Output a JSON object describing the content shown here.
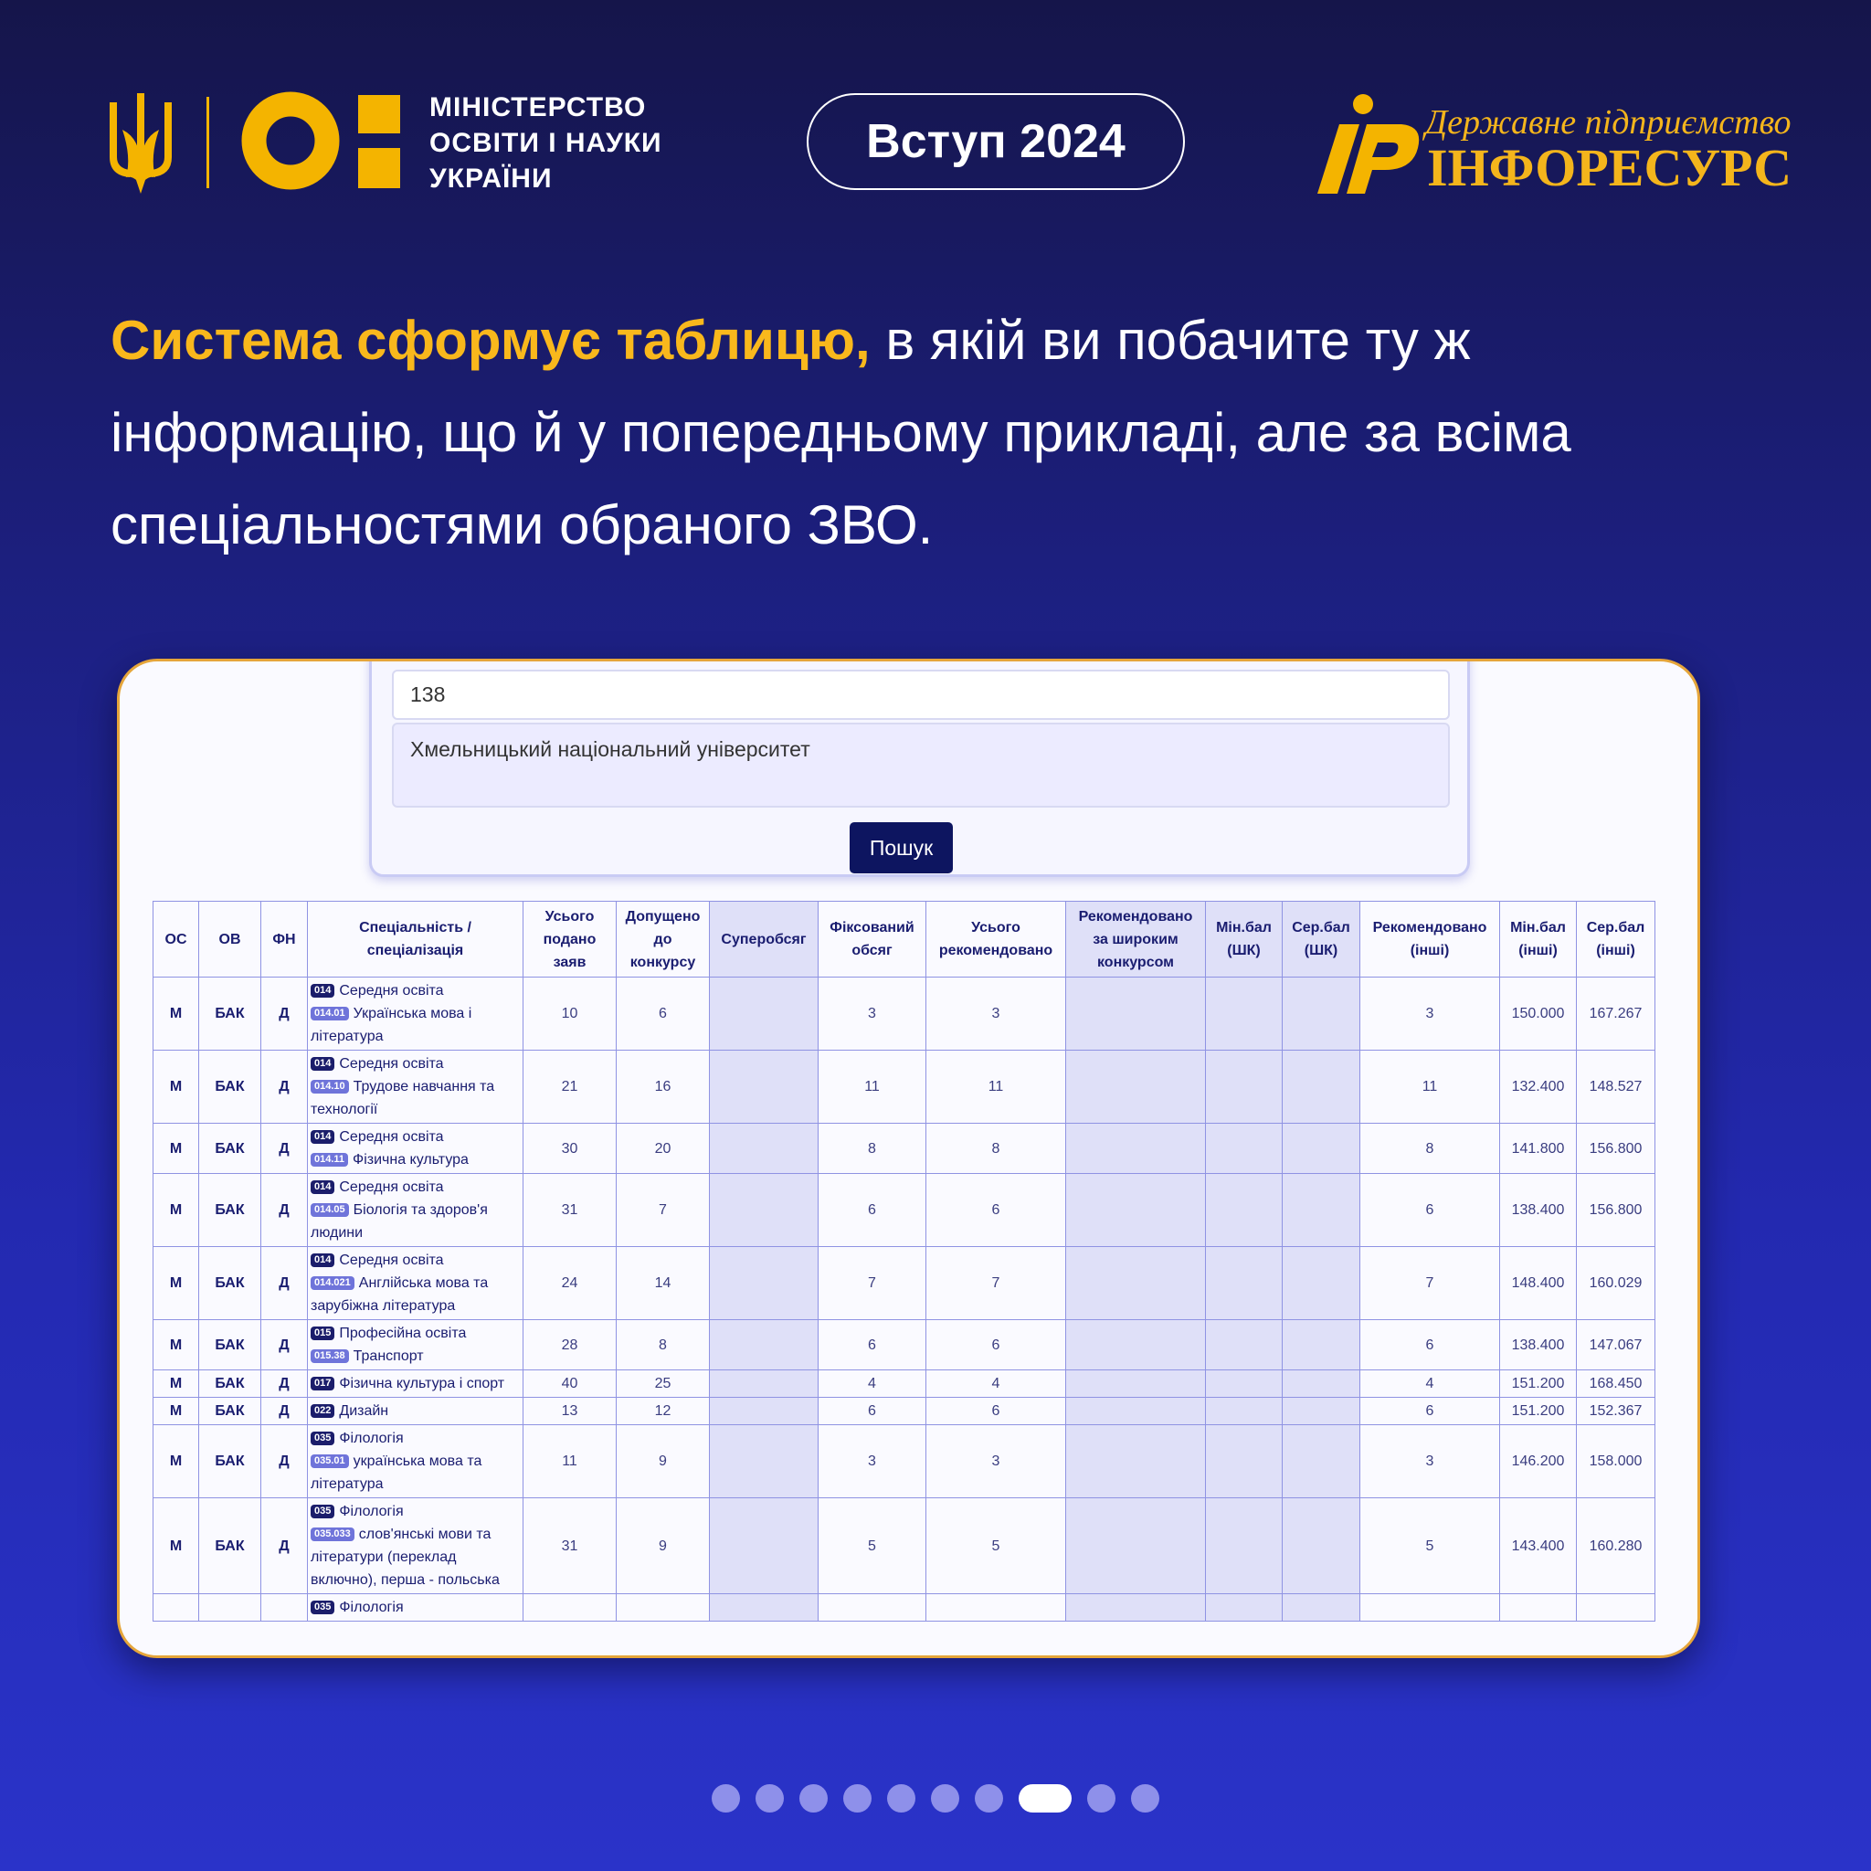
{
  "header": {
    "ministry": [
      "МІНІСТЕРСТВО",
      "ОСВІТИ І НАУКИ",
      "УКРАЇНИ"
    ],
    "badge": "Вступ 2024",
    "partner": {
      "subtitle": "Державне підприємство",
      "name": "ІНФОРЕСУРС"
    }
  },
  "headline": {
    "highlight": "Система сформує таблицю,",
    "text": "в якій ви побачите ту ж інформацію, що й у попередньому прикладі, але за всіма спеціальностями обраного ЗВО."
  },
  "form": {
    "code": "138",
    "university": "Хмельницький національний університет",
    "button": "Пошук"
  },
  "table": {
    "headers": [
      "ОС",
      "ОВ",
      "ФН",
      "Спеціальність / спеціалізація",
      "Усього подано заяв",
      "Допущено до конкурсу",
      "Суперобсяг",
      "Фіксований обсяг",
      "Усього рекомендовано",
      "Рекомендовано за широким конкурсом",
      "Мін.бал (ШК)",
      "Сер.бал (ШК)",
      "Рекомендовано (інші)",
      "Мін.бал (інші)",
      "Сер.бал (інші)"
    ],
    "rows": [
      {
        "os": "М",
        "ov": "БАК",
        "fn": "Д",
        "specialty": [
          {
            "code": "014",
            "name": "Середня освіта"
          },
          {
            "code": "014.01",
            "name": "Українська мова і література"
          }
        ],
        "cells": [
          "10",
          "6",
          null,
          "3",
          "3",
          null,
          null,
          null,
          "3",
          "150.000",
          "167.267"
        ]
      },
      {
        "os": "М",
        "ov": "БАК",
        "fn": "Д",
        "specialty": [
          {
            "code": "014",
            "name": "Середня освіта"
          },
          {
            "code": "014.10",
            "name": "Трудове навчання та технології"
          }
        ],
        "cells": [
          "21",
          "16",
          null,
          "11",
          "11",
          null,
          null,
          null,
          "11",
          "132.400",
          "148.527"
        ]
      },
      {
        "os": "М",
        "ov": "БАК",
        "fn": "Д",
        "specialty": [
          {
            "code": "014",
            "name": "Середня освіта"
          },
          {
            "code": "014.11",
            "name": "Фізична культура"
          }
        ],
        "cells": [
          "30",
          "20",
          null,
          "8",
          "8",
          null,
          null,
          null,
          "8",
          "141.800",
          "156.800"
        ]
      },
      {
        "os": "М",
        "ov": "БАК",
        "fn": "Д",
        "specialty": [
          {
            "code": "014",
            "name": "Середня освіта"
          },
          {
            "code": "014.05",
            "name": "Біологія та здоров'я людини"
          }
        ],
        "cells": [
          "31",
          "7",
          null,
          "6",
          "6",
          null,
          null,
          null,
          "6",
          "138.400",
          "156.800"
        ]
      },
      {
        "os": "М",
        "ov": "БАК",
        "fn": "Д",
        "specialty": [
          {
            "code": "014",
            "name": "Середня освіта"
          },
          {
            "code": "014.021",
            "name": "Англійська мова та зарубіжна література"
          }
        ],
        "cells": [
          "24",
          "14",
          null,
          "7",
          "7",
          null,
          null,
          null,
          "7",
          "148.400",
          "160.029"
        ]
      },
      {
        "os": "М",
        "ov": "БАК",
        "fn": "Д",
        "specialty": [
          {
            "code": "015",
            "name": "Професійна освіта"
          },
          {
            "code": "015.38",
            "name": "Транспорт"
          }
        ],
        "cells": [
          "28",
          "8",
          null,
          "6",
          "6",
          null,
          null,
          null,
          "6",
          "138.400",
          "147.067"
        ]
      },
      {
        "os": "М",
        "ov": "БАК",
        "fn": "Д",
        "specialty": [
          {
            "code": "017",
            "name": "Фізична культура і спорт"
          }
        ],
        "cells": [
          "40",
          "25",
          null,
          "4",
          "4",
          null,
          null,
          null,
          "4",
          "151.200",
          "168.450"
        ]
      },
      {
        "os": "М",
        "ov": "БАК",
        "fn": "Д",
        "specialty": [
          {
            "code": "022",
            "name": "Дизайн"
          }
        ],
        "cells": [
          "13",
          "12",
          null,
          "6",
          "6",
          null,
          null,
          null,
          "6",
          "151.200",
          "152.367"
        ]
      },
      {
        "os": "М",
        "ov": "БАК",
        "fn": "Д",
        "specialty": [
          {
            "code": "035",
            "name": "Філологія"
          },
          {
            "code": "035.01",
            "name": "українська мова та література"
          }
        ],
        "cells": [
          "11",
          "9",
          null,
          "3",
          "3",
          null,
          null,
          null,
          "3",
          "146.200",
          "158.000"
        ]
      },
      {
        "os": "М",
        "ov": "БАК",
        "fn": "Д",
        "specialty": [
          {
            "code": "035",
            "name": "Філологія"
          },
          {
            "code": "035.033",
            "name": "слов'янські мови та літератури (переклад включно), перша - польська"
          }
        ],
        "cells": [
          "31",
          "9",
          null,
          "5",
          "5",
          null,
          null,
          null,
          "5",
          "143.400",
          "160.280"
        ]
      },
      {
        "specialty": [
          {
            "code": "035",
            "name": "Філологія"
          }
        ]
      }
    ]
  }
}
